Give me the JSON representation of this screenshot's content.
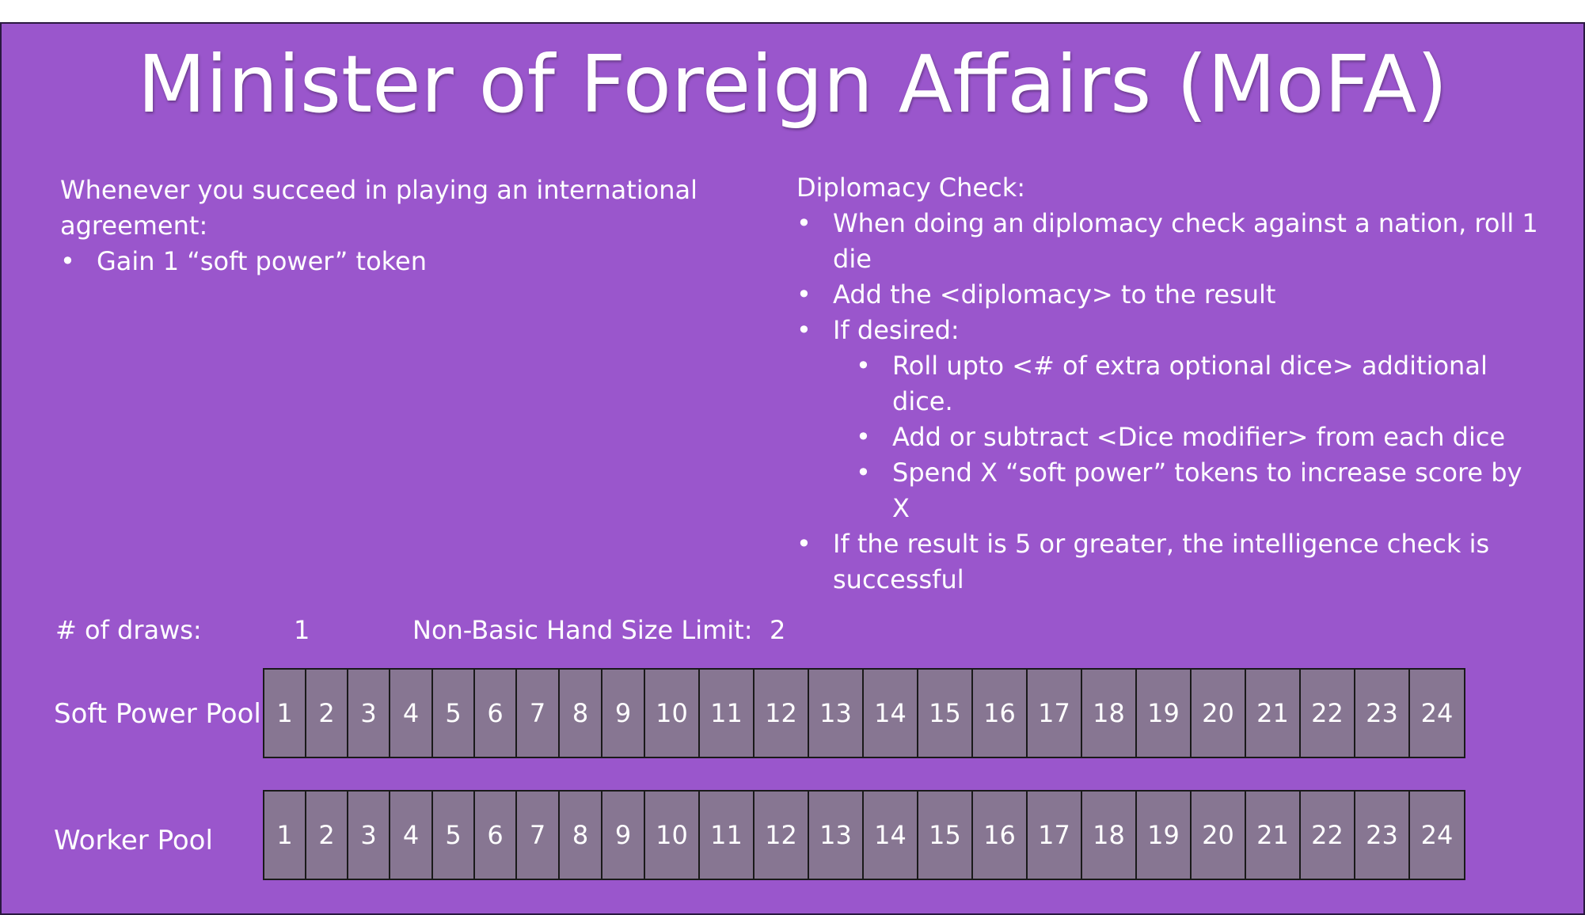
{
  "title": "Minister of Foreign Affairs (MoFA)",
  "left_panel": {
    "heading": "Whenever you succeed in playing an international agreement:",
    "bullets": [
      "Gain 1 “soft power” token"
    ]
  },
  "right_panel": {
    "heading": "Diplomacy Check:",
    "bullet_1": "When doing an diplomacy check against a nation, roll 1 die",
    "bullet_2": "Add the <diplomacy>  to the result",
    "bullet_3": "If desired:",
    "sub_bullets": [
      "Roll upto <# of extra optional dice> additional dice.",
      "Add or subtract <Dice modifier> from each dice",
      "Spend X “soft power” tokens to increase score by X"
    ],
    "bullet_4": "If the result is 5 or greater, the intelligence check is successful"
  },
  "stats": {
    "draws_label": "# of draws:",
    "draws_value": "1",
    "hand_limit_label": "Non-Basic Hand Size Limit:",
    "hand_limit_value": "2"
  },
  "pools": [
    {
      "label": "Soft Power Pool",
      "cells": [
        "1",
        "2",
        "3",
        "4",
        "5",
        "6",
        "7",
        "8",
        "9",
        "10",
        "11",
        "12",
        "13",
        "14",
        "15",
        "16",
        "17",
        "18",
        "19",
        "20",
        "21",
        "22",
        "23",
        "24"
      ]
    },
    {
      "label": "Worker Pool",
      "cells": [
        "1",
        "2",
        "3",
        "4",
        "5",
        "6",
        "7",
        "8",
        "9",
        "10",
        "11",
        "12",
        "13",
        "14",
        "15",
        "16",
        "17",
        "18",
        "19",
        "20",
        "21",
        "22",
        "23",
        "24"
      ]
    }
  ],
  "colors": {
    "background": "#9a56cc",
    "cell_fill": "#877692",
    "cell_border": "#1a1a1a",
    "text": "#ffffff"
  }
}
